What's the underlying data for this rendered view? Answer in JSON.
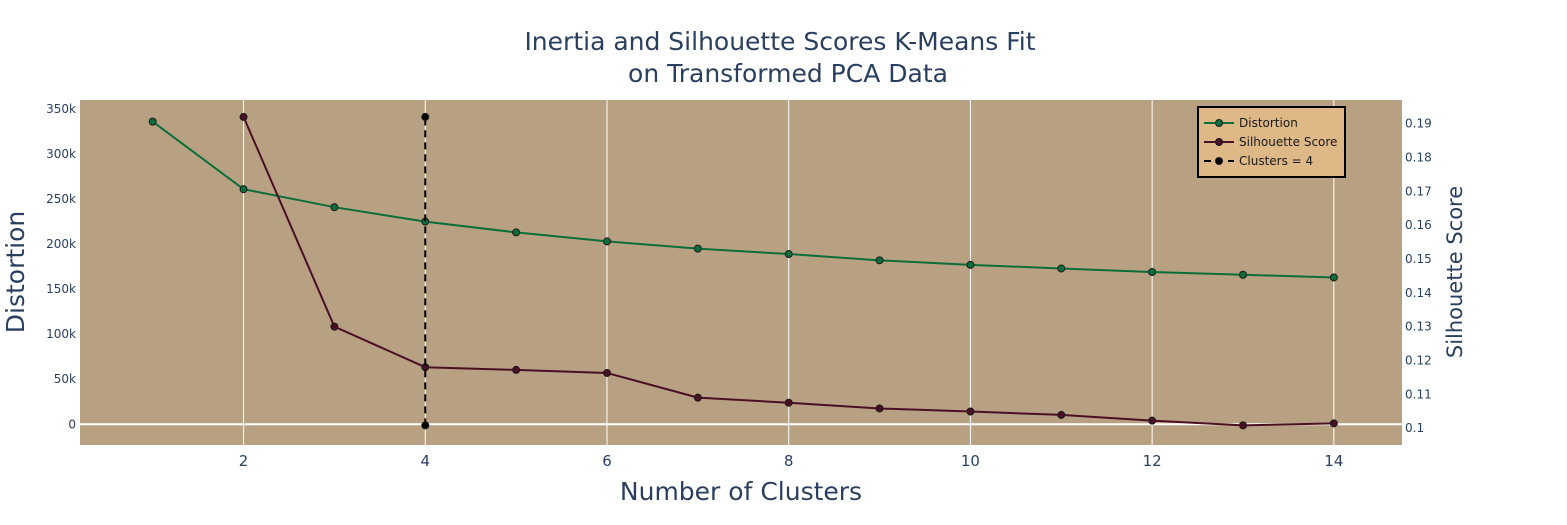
{
  "chart_data": {
    "type": "line",
    "title_line1": "Inertia and Silhouette Scores K-Means Fit",
    "title_line2": "on Transformed PCA Data",
    "xlabel": "Number of Clusters",
    "ylabel_left": "Distortion",
    "ylabel_right": "Silhouette Score",
    "xlim": [
      0.2,
      14.75
    ],
    "ylim_left": [
      -23000,
      360000
    ],
    "ylim_right": [
      0.095,
      0.197
    ],
    "x_ticks": [
      2,
      4,
      6,
      8,
      10,
      12,
      14
    ],
    "x_tick_labels": [
      "2",
      "4",
      "6",
      "8",
      "10",
      "12",
      "14"
    ],
    "y_left_ticks": [
      0,
      50000,
      100000,
      150000,
      200000,
      250000,
      300000,
      350000
    ],
    "y_left_tick_labels": [
      "0",
      "50k",
      "100k",
      "150k",
      "200k",
      "250k",
      "300k",
      "350k"
    ],
    "y_right_ticks": [
      0.1,
      0.11,
      0.12,
      0.13,
      0.14,
      0.15,
      0.16,
      0.17,
      0.18,
      0.19
    ],
    "y_right_tick_labels": [
      "0.1",
      "0.11",
      "0.12",
      "0.13",
      "0.14",
      "0.15",
      "0.16",
      "0.17",
      "0.18",
      "0.19"
    ],
    "grid": true,
    "plot_bgcolor": "#b8a083",
    "legend_position": "top-right",
    "legend_bgcolor": "#deb887",
    "series": [
      {
        "name": "Distortion",
        "axis": "left",
        "color": "#0b6e3a",
        "x": [
          1,
          2,
          3,
          4,
          5,
          6,
          7,
          8,
          9,
          10,
          11,
          12,
          13,
          14
        ],
        "values": [
          336000,
          261000,
          241000,
          225000,
          213000,
          203000,
          195000,
          189000,
          182000,
          177000,
          173000,
          169000,
          166000,
          163000
        ]
      },
      {
        "name": "Silhouette Score",
        "axis": "right",
        "color": "#4a0f24",
        "x": [
          2,
          3,
          4,
          5,
          6,
          7,
          8,
          9,
          10,
          11,
          12,
          13,
          14
        ],
        "values": [
          0.192,
          0.13,
          0.118,
          0.1172,
          0.1163,
          0.109,
          0.1075,
          0.1058,
          0.1049,
          0.1039,
          0.1022,
          0.1008,
          0.1014
        ]
      },
      {
        "name": "Clusters = 4",
        "axis": "right",
        "color": "#000000",
        "dash": "dash",
        "x": [
          4,
          4
        ],
        "values": [
          0.1008,
          0.192
        ]
      }
    ]
  }
}
